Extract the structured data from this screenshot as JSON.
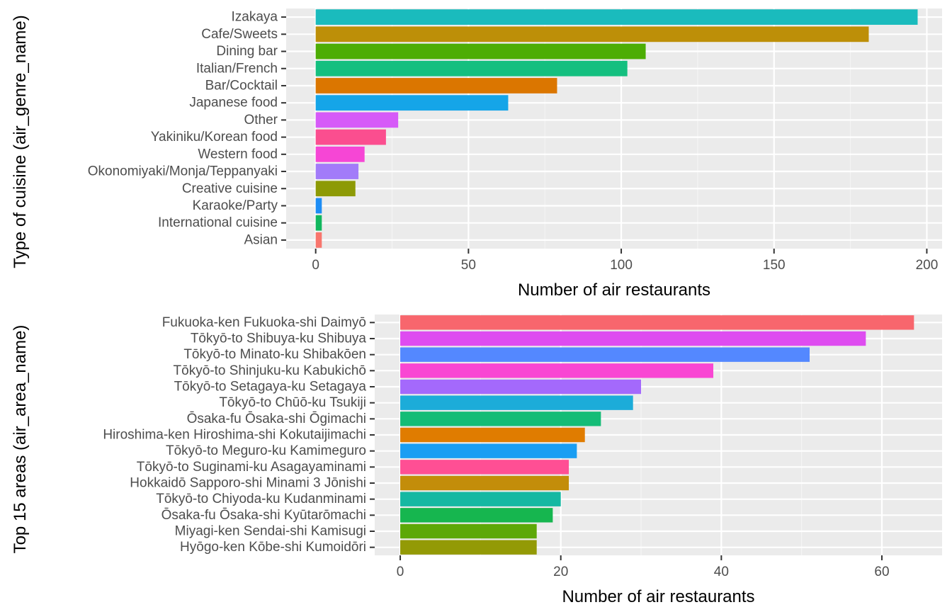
{
  "chart_data": [
    {
      "type": "bar",
      "orientation": "horizontal",
      "xlabel": "Number of air restaurants",
      "ylabel": "Type of cuisine (air_genre_name)",
      "xlim": [
        0,
        205
      ],
      "xticks": [
        0,
        50,
        100,
        150,
        200
      ],
      "grid": true,
      "categories": [
        "Izakaya",
        "Cafe/Sweets",
        "Dining bar",
        "Italian/French",
        "Bar/Cocktail",
        "Japanese food",
        "Other",
        "Yakiniku/Korean food",
        "Western food",
        "Okonomiyaki/Monja/Teppanyaki",
        "Creative cuisine",
        "Karaoke/Party",
        "International cuisine",
        "Asian"
      ],
      "values": [
        197,
        181,
        108,
        102,
        79,
        63,
        27,
        23,
        16,
        14,
        13,
        2,
        2,
        2
      ],
      "colors": [
        "#1ABBBD",
        "#BD8F08",
        "#4DAD04",
        "#14BF7F",
        "#DB7600",
        "#15A5E8",
        "#D65AF8",
        "#FB4E8F",
        "#F646D5",
        "#A27BF9",
        "#8D9A06",
        "#1D8DF5",
        "#11B75E",
        "#F8766D"
      ]
    },
    {
      "type": "bar",
      "orientation": "horizontal",
      "xlabel": "Number of air restaurants",
      "ylabel": "Top 15 areas (air_area_name)",
      "xlim": [
        0,
        67.5
      ],
      "xticks": [
        0,
        20,
        40,
        60
      ],
      "grid": true,
      "categories": [
        "Fukuoka-ken Fukuoka-shi Daimyō",
        "Tōkyō-to Shibuya-ku Shibuya",
        "Tōkyō-to Minato-ku Shibakōen",
        "Tōkyō-to Shinjuku-ku Kabukichō",
        "Tōkyō-to Setagaya-ku Setagaya",
        "Tōkyō-to Chūō-ku Tsukiji",
        "Ōsaka-fu Ōsaka-shi Ōgimachi",
        "Hiroshima-ken Hiroshima-shi Kokutaijimachi",
        "Tōkyō-to Meguro-ku Kamimeguro",
        "Tōkyō-to Suginami-ku Asagayaminami",
        "Hokkaidō Sapporo-shi Minami 3 Jōnishi",
        "Tōkyō-to Chiyoda-ku Kudanminami",
        "Ōsaka-fu Ōsaka-shi Kyūtarōmachi",
        "Miyagi-ken Sendai-shi Kamisugi",
        "Hyōgo-ken Kōbe-shi Kumoidōri"
      ],
      "values": [
        64,
        58,
        51,
        39,
        30,
        29,
        25,
        23,
        22,
        21,
        21,
        20,
        19,
        17,
        17
      ],
      "colors": [
        "#F8666D",
        "#DE4CF0",
        "#5488FF",
        "#F946D3",
        "#A469FC",
        "#1CACD9",
        "#14BC76",
        "#E07C00",
        "#1A9EF3",
        "#FF4F94",
        "#C38D0A",
        "#16B8A2",
        "#16B64F",
        "#5DA808",
        "#939A06"
      ]
    }
  ]
}
